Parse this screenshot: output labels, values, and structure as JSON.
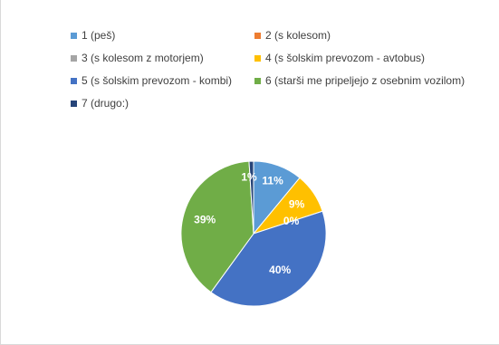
{
  "chart_data": {
    "type": "pie",
    "series": [
      {
        "name": "1 (peš)",
        "value": 11,
        "label": "11%",
        "color": "#5b9bd5"
      },
      {
        "name": "2 (s kolesom)",
        "value": 0,
        "label": "0%",
        "color": "#ed7d31"
      },
      {
        "name": "3 (s kolesom z motorjem)",
        "value": 0,
        "label": "",
        "color": "#a5a5a5"
      },
      {
        "name": "4 (s šolskim prevozom - avtobus)",
        "value": 9,
        "label": "9%",
        "color": "#ffc000"
      },
      {
        "name": "5 (s šolskim prevozom - kombi)",
        "value": 40,
        "label": "40%",
        "color": "#4472c4"
      },
      {
        "name": "6 (starši me pripeljejo z osebnim vozilom)",
        "value": 39,
        "label": "39%",
        "color": "#70ad47"
      },
      {
        "name": "7 (drugo:)",
        "value": 1,
        "label": "1%",
        "color": "#264478"
      }
    ],
    "legend_position": "top",
    "grid": false
  }
}
